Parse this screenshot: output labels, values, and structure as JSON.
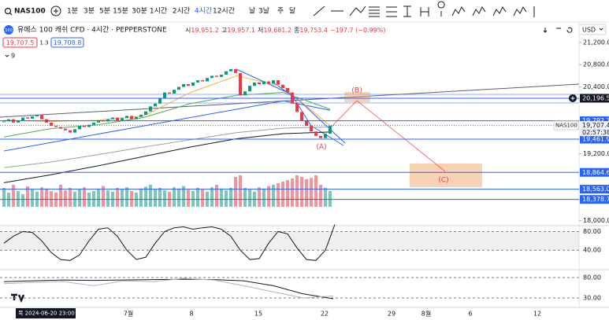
{
  "toolbar": {
    "symbol": "NAS100",
    "intervals": [
      "1분",
      "3분",
      "5분",
      "15분",
      "30분",
      "1시간",
      "2시간",
      "4시간",
      "12시간",
      "날",
      "3날",
      "주",
      "달"
    ],
    "active_interval_index": 7
  },
  "header": {
    "logo": "100",
    "title": "유에스 100 캐쉬 CFD · 4시간 · PEPPERSTONE",
    "ohlc": [
      {
        "label": "시",
        "value": "19,951.2"
      },
      {
        "label": "고",
        "value": "19,957.1"
      },
      {
        "label": "저",
        "value": "19,681.2"
      },
      {
        "label": "종",
        "value": "19,753.4"
      }
    ],
    "change": "−197.7 (−0.99%)",
    "currency": "USD"
  },
  "quote": {
    "sell": "19,707.5",
    "spread": "1.3",
    "buy": "19,708.8"
  },
  "indicator_toggle": "9",
  "chart_data": {
    "type": "candlestick",
    "ylim": [
      17936,
      21340
    ],
    "yticks": [
      {
        "value": 21200,
        "label": "21,200.0"
      },
      {
        "value": 20800,
        "label": "20,800.0"
      },
      {
        "value": 20400,
        "label": "20,400.0"
      },
      {
        "value": 19200,
        "label": "19,200.0"
      },
      {
        "value": 18000,
        "label": "18,000.0"
      }
    ],
    "closes": [
      19780,
      19820,
      19760,
      19800,
      19850,
      19830,
      19870,
      19900,
      19820,
      19760,
      19700,
      19680,
      19650,
      19620,
      19580,
      19640,
      19700,
      19680,
      19720,
      19760,
      19800,
      19780,
      19820,
      19850,
      19800,
      19840,
      19880,
      19820,
      19860,
      19900,
      19960,
      20050,
      20100,
      20200,
      20300,
      20280,
      20350,
      20400,
      20450,
      20420,
      20480,
      20520,
      20500,
      20560,
      20600,
      20580,
      20620,
      20680,
      20720,
      20650,
      20250,
      20320,
      20420,
      20480,
      20450,
      20500,
      20460,
      20520,
      20440,
      20380,
      20300,
      20100,
      19950,
      19800,
      19700,
      19600,
      19520,
      19480,
      19560,
      19700
    ],
    "volume": [
      60,
      45,
      70,
      50,
      40,
      65,
      55,
      48,
      62,
      58,
      50,
      45,
      70,
      52,
      60,
      48,
      55,
      62,
      45,
      50,
      58,
      66,
      52,
      48,
      60,
      55,
      62,
      50,
      45,
      58,
      64,
      70,
      55,
      60,
      52,
      48,
      62,
      58,
      66,
      54,
      50,
      60,
      55,
      48,
      62,
      70,
      58,
      52,
      60,
      95,
      100,
      60,
      55,
      48,
      62,
      58,
      66,
      70,
      75,
      80,
      85,
      90,
      100,
      95,
      88,
      92,
      100,
      70,
      60,
      50
    ],
    "up_color": "#089981",
    "down_color": "#f23645",
    "moving_averages": [
      {
        "color": "#131722",
        "values": [
          18680,
          18820,
          18980,
          19150,
          19320,
          19470,
          19560,
          19590
        ]
      },
      {
        "color": "#9e9e9e",
        "values": [
          18950,
          19050,
          19180,
          19320,
          19450,
          19580,
          19660,
          19680
        ]
      },
      {
        "color": "#2962ff",
        "values": [
          19250,
          19400,
          19550,
          19700,
          19850,
          20000,
          20150,
          19980
        ]
      },
      {
        "color": "#4caf50",
        "values": [
          19500,
          19650,
          19720,
          19850,
          20100,
          20250,
          20300,
          20000
        ]
      },
      {
        "color": "#f5b041",
        "values": [
          19800,
          19780,
          19800,
          19880,
          20300,
          20600,
          20400,
          19700
        ]
      }
    ],
    "levels": [
      {
        "value": 20196.5,
        "label": "20,196.5",
        "color": "#131722"
      },
      {
        "value": 19792.3,
        "label": "19,792.3",
        "color": "#2962ff"
      },
      {
        "value": 19461.9,
        "label": "19,461.9",
        "color": "#2962ff"
      },
      {
        "value": 18864.6,
        "label": "18,864.6",
        "color": "#2962ff"
      },
      {
        "value": 18563.0,
        "label": "18,563.0",
        "color": "#2962ff"
      },
      {
        "value": 18378.7,
        "label": "18,378.7",
        "color": "#2962ff"
      }
    ],
    "last_price": {
      "name": "NAS100",
      "value": 19707.4,
      "label": "19,707.4",
      "countdown": "02:57:38"
    },
    "annotations": [
      "(A)",
      "(B)",
      "(C)"
    ],
    "dates": [
      "7월",
      "8",
      "15",
      "22",
      "29",
      "8월",
      "6",
      "12"
    ],
    "crosshair_date": "목 2024-06-20 23:00",
    "oscillator": {
      "ylim": [
        0,
        100
      ],
      "yticks": [
        {
          "value": 80,
          "label": "80.00"
        },
        {
          "value": 40,
          "label": "40.00"
        }
      ],
      "values": [
        55,
        70,
        80,
        78,
        60,
        35,
        20,
        18,
        30,
        60,
        85,
        88,
        70,
        40,
        20,
        25,
        55,
        80,
        88,
        90,
        85,
        88,
        90,
        85,
        70,
        40,
        20,
        22,
        55,
        80,
        75,
        45,
        20,
        18,
        40,
        95
      ]
    },
    "oscillator2": {
      "yticks": [
        {
          "value": 80,
          "label": "80.00"
        },
        {
          "value": 30,
          "label": "30.00"
        }
      ],
      "series": [
        {
          "color": "#131722",
          "values": [
            70,
            72,
            74,
            73,
            74,
            75,
            76,
            75,
            72,
            60,
            40,
            28
          ]
        },
        {
          "color": "#b0b3bc",
          "values": [
            65,
            68,
            70,
            60,
            72,
            70,
            78,
            74,
            60,
            45,
            30,
            35
          ]
        }
      ]
    }
  }
}
